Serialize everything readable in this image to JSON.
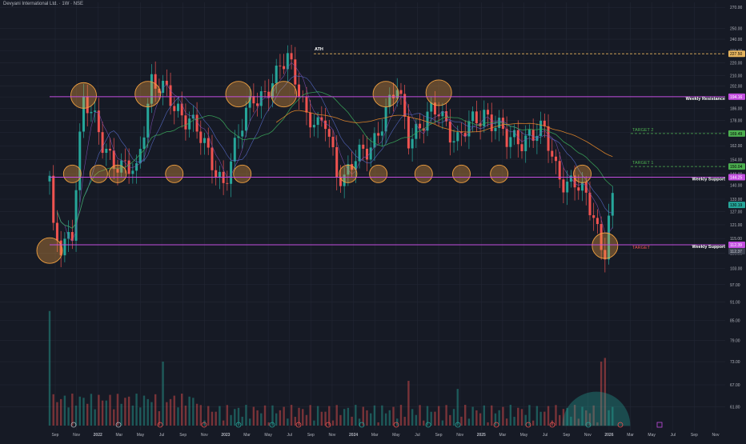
{
  "title": "Devyani International Ltd. · 1W · NSE",
  "colors": {
    "background": "#161a25",
    "grid": "#232735",
    "up": "#26a69a",
    "down": "#ef5350",
    "resistance": "#c34de0",
    "circle_fill": "#f0a040",
    "ema_short": "#7b4fb0",
    "ema_mid": "#3aa65a",
    "ema_long": "#e8892a",
    "target_line": "#4caf50",
    "ath_line": "#e6b45e",
    "axis_text": "#b2b5be"
  },
  "chart_data": {
    "type": "candlestick",
    "title": "Devyani International Ltd. · 1W · NSE",
    "y_scale": "log",
    "ylim": [
      58.5,
      275
    ],
    "y_ticks": [
      270.0,
      250.0,
      240.0,
      230.0,
      220.0,
      210.0,
      202.0,
      194.0,
      186.0,
      178.0,
      170.0,
      162.0,
      154.0,
      146.0,
      140.0,
      133.0,
      127.0,
      121.0,
      115.0,
      109.0,
      103.0,
      97.0,
      91.0,
      85.0,
      79.0,
      73.0,
      67.0,
      61.8
    ],
    "x_ticks": [
      "Sep",
      "Nov",
      "2022",
      "Mar",
      "May",
      "Jul",
      "Sep",
      "Nov",
      "2023",
      "Mar",
      "May",
      "Jul",
      "Sep",
      "Nov",
      "2024",
      "Mar",
      "May",
      "Jul",
      "Sep",
      "Nov",
      "2025",
      "Mar",
      "May",
      "Jul",
      "Sep",
      "Nov",
      "2026",
      "Mar",
      "May",
      "Jul",
      "Sep",
      "Nov"
    ],
    "price_path": [
      [
        0,
        142
      ],
      [
        1,
        115
      ],
      [
        3,
        111
      ],
      [
        6,
        120
      ],
      [
        9,
        190
      ],
      [
        14,
        165
      ],
      [
        19,
        148
      ],
      [
        23,
        146
      ],
      [
        27,
        208
      ],
      [
        33,
        186
      ],
      [
        37,
        182
      ],
      [
        42,
        154
      ],
      [
        46,
        143
      ],
      [
        50,
        165
      ],
      [
        54,
        196
      ],
      [
        57,
        198
      ],
      [
        60,
        206
      ],
      [
        63,
        225
      ],
      [
        66,
        205
      ],
      [
        68,
        180
      ],
      [
        71,
        170
      ],
      [
        73,
        178
      ],
      [
        76,
        150
      ],
      [
        78,
        143
      ],
      [
        82,
        155
      ],
      [
        86,
        168
      ],
      [
        90,
        186
      ],
      [
        92,
        200
      ],
      [
        95,
        170
      ],
      [
        99,
        175
      ],
      [
        103,
        185
      ],
      [
        105,
        178
      ],
      [
        108,
        165
      ],
      [
        111,
        172
      ],
      [
        115,
        185
      ],
      [
        118,
        176
      ],
      [
        121,
        163
      ],
      [
        124,
        167
      ],
      [
        127,
        170
      ],
      [
        131,
        168
      ],
      [
        134,
        150
      ],
      [
        137,
        142
      ],
      [
        139,
        140
      ],
      [
        142,
        132
      ],
      [
        144,
        127
      ],
      [
        146,
        113
      ],
      [
        147,
        112
      ],
      [
        148,
        124
      ],
      [
        149,
        130
      ]
    ],
    "horizontal_levels": [
      {
        "label": "Weekly Resistance",
        "price": 194.16,
        "price_label": "194.16"
      },
      {
        "label": "Weekly Support",
        "price": 144.25,
        "price_label": "144.25"
      },
      {
        "label": "Weekly Support",
        "price": 112.39,
        "price_label": "112.39"
      }
    ],
    "target_levels": [
      {
        "label": "TARGET 2",
        "price": 169.49,
        "price_label": "169.49"
      },
      {
        "label": "TARGET 1",
        "price": 150.04,
        "price_label": "150.04"
      },
      {
        "label": "TARGET",
        "price": 112.39
      }
    ],
    "ath": {
      "label": "ATH",
      "price": 227.5,
      "price_label": "227.50"
    },
    "last_price": {
      "price": 130.19,
      "price_label": "130.19"
    },
    "secondary_price_label": "112.37",
    "circles_at": [
      [
        0,
        110
      ],
      [
        6,
        146
      ],
      [
        9,
        195
      ],
      [
        13,
        146
      ],
      [
        18,
        146
      ],
      [
        26,
        196
      ],
      [
        33,
        146
      ],
      [
        50,
        196
      ],
      [
        51,
        146
      ],
      [
        62,
        196
      ],
      [
        79,
        146
      ],
      [
        87,
        146
      ],
      [
        89,
        196
      ],
      [
        99,
        146
      ],
      [
        103,
        197
      ],
      [
        109,
        146
      ],
      [
        119,
        146
      ],
      [
        141,
        146
      ],
      [
        147,
        112
      ]
    ],
    "volume_spikes": [
      [
        0,
        88
      ],
      [
        30,
        73
      ],
      [
        95,
        68
      ],
      [
        108,
        66
      ],
      [
        146,
        73
      ],
      [
        147,
        74
      ]
    ]
  }
}
